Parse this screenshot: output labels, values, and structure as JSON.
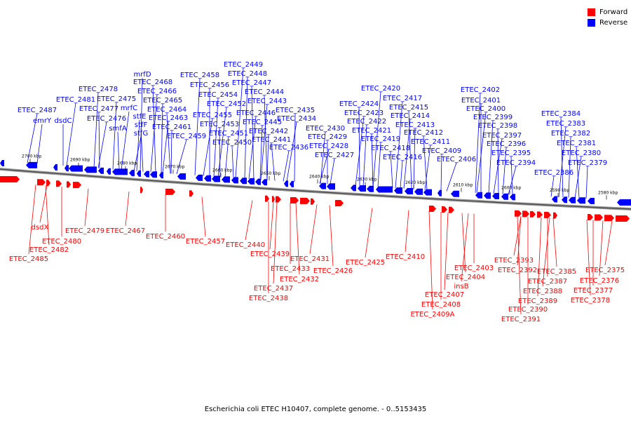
{
  "legend": {
    "forward_label": "Forward",
    "reverse_label": "Reverse",
    "forward_color": "#ff0000",
    "reverse_color": "#0000ff"
  },
  "caption": "Escherichia coli ETEC H10407, complete genome. - 0..5153435",
  "colors": {
    "forward": "#ff0000",
    "reverse": "#0000ff",
    "axis": "#777777"
  },
  "ticks": [
    "2700 kbp",
    "2690 kbp",
    "2680 kbp",
    "2670 kbp",
    "2660 kbp",
    "2650 kbp",
    "2640 kbp",
    "2630 kbp",
    "2620 kbp",
    "2610 kbp",
    "2600 kbp",
    "2590 kbp",
    "2580 kbp"
  ],
  "reverse_labels": [
    "ETEC_2487",
    "emrY",
    "dsdC",
    "ETEC_2481",
    "ETEC_2478",
    "ETEC_2477",
    "ETEC_2476",
    "ETEC_2475",
    "smfA",
    "mrfC",
    "stfE",
    "stfF",
    "stfG",
    "mrfD",
    "ETEC_2468",
    "ETEC_2466",
    "ETEC_2465",
    "ETEC_2464",
    "ETEC_2463",
    "ETEC_2461",
    "ETEC_2459",
    "ETEC_2458",
    "ETEC_2456",
    "ETEC_2455",
    "ETEC_2454",
    "ETEC_2453",
    "ETEC_2452",
    "ETEC_2451",
    "ETEC_2450",
    "ETEC_2449",
    "ETEC_2448",
    "ETEC_2447",
    "ETEC_2446",
    "ETEC_2445",
    "ETEC_2444",
    "ETEC_2443",
    "ETEC_2442",
    "ETEC_2441",
    "ETEC_2436",
    "ETEC_2435",
    "ETEC_2434",
    "ETEC_2430",
    "ETEC_2429",
    "ETEC_2428",
    "ETEC_2427",
    "ETEC_2424",
    "ETEC_2423",
    "ETEC_2422",
    "ETEC_2421",
    "ETEC_2420",
    "ETEC_2419",
    "ETEC_2418",
    "ETEC_2417",
    "ETEC_2416",
    "ETEC_2415",
    "ETEC_2414",
    "ETEC_2413",
    "ETEC_2412",
    "ETEC_2411",
    "ETEC_2409",
    "ETEC_2406",
    "ETEC_2402",
    "ETEC_2401",
    "ETEC_2400",
    "ETEC_2399",
    "ETEC_2398",
    "ETEC_2397",
    "ETEC_2396",
    "ETEC_2395",
    "ETEC_2394",
    "ETEC_2386",
    "ETEC_2384",
    "ETEC_2383",
    "ETEC_2382",
    "ETEC_2381",
    "ETEC_2380",
    "ETEC_2379"
  ],
  "forward_labels": [
    "dsdX",
    "ETEC_2479",
    "ETEC_2480",
    "ETEC_2482",
    "ETEC_2485",
    "ETEC_2467",
    "ETEC_2460",
    "ETEC_2457",
    "ETEC_2440",
    "ETEC_2439",
    "ETEC_2433",
    "ETEC_2432",
    "ETEC_2431",
    "ETEC_2437",
    "ETEC_2438",
    "ETEC_2426",
    "ETEC_2425",
    "ETEC_2410",
    "ETEC_2403",
    "ETEC_2404",
    "insB",
    "ETEC_2407",
    "ETEC_2408",
    "ETEC_2409A",
    "ETEC_2393",
    "ETEC_2392",
    "ETEC_2387",
    "ETEC_2385",
    "ETEC_2388",
    "ETEC_2389",
    "ETEC_2390",
    "ETEC_2391",
    "ETEC_2375",
    "ETEC_2376",
    "ETEC_2377",
    "ETEC_2378"
  ]
}
